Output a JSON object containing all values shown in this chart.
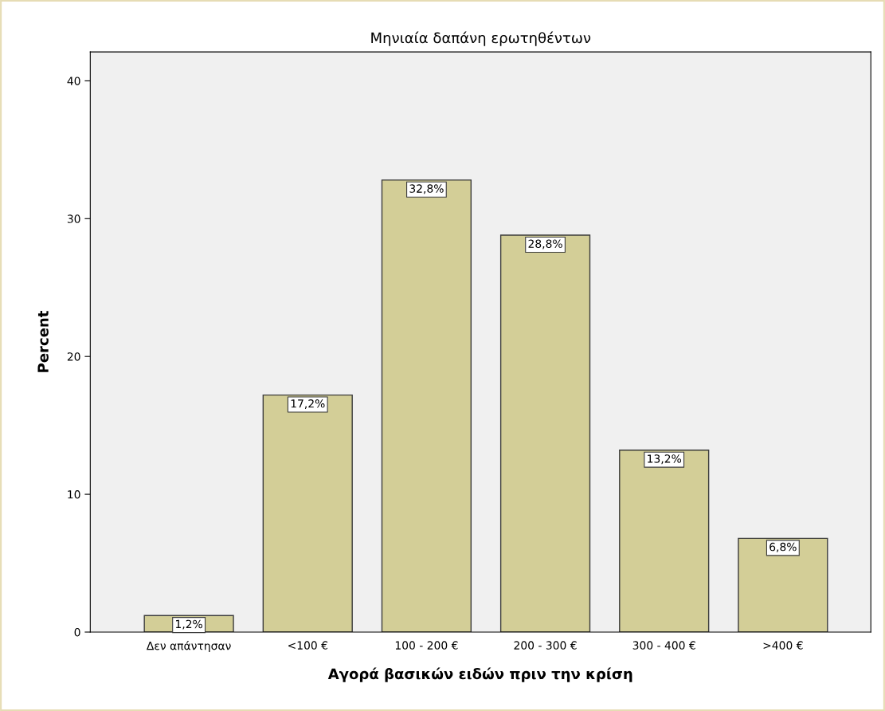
{
  "chart_data": {
    "type": "bar",
    "title": "Μηνιαία δαπάνη ερωτηθέντων",
    "xlabel": "Αγορά βασικών ειδών πριν την κρίση",
    "ylabel": "Percent",
    "categories": [
      "Δεν απάντησαν",
      "<100 €",
      "100 - 200 €",
      "200 - 300 €",
      "300 - 400 €",
      ">400 €"
    ],
    "values": [
      1.2,
      17.2,
      32.8,
      28.8,
      13.2,
      6.8
    ],
    "value_labels": [
      "1,2%",
      "17,2%",
      "32,8%",
      "28,8%",
      "13,2%",
      "6,8%"
    ],
    "color": "#d3ce97",
    "ylim": [
      0,
      42.1
    ],
    "yticks": [
      0,
      10,
      20,
      30,
      40
    ],
    "grid": false,
    "legend": false
  }
}
